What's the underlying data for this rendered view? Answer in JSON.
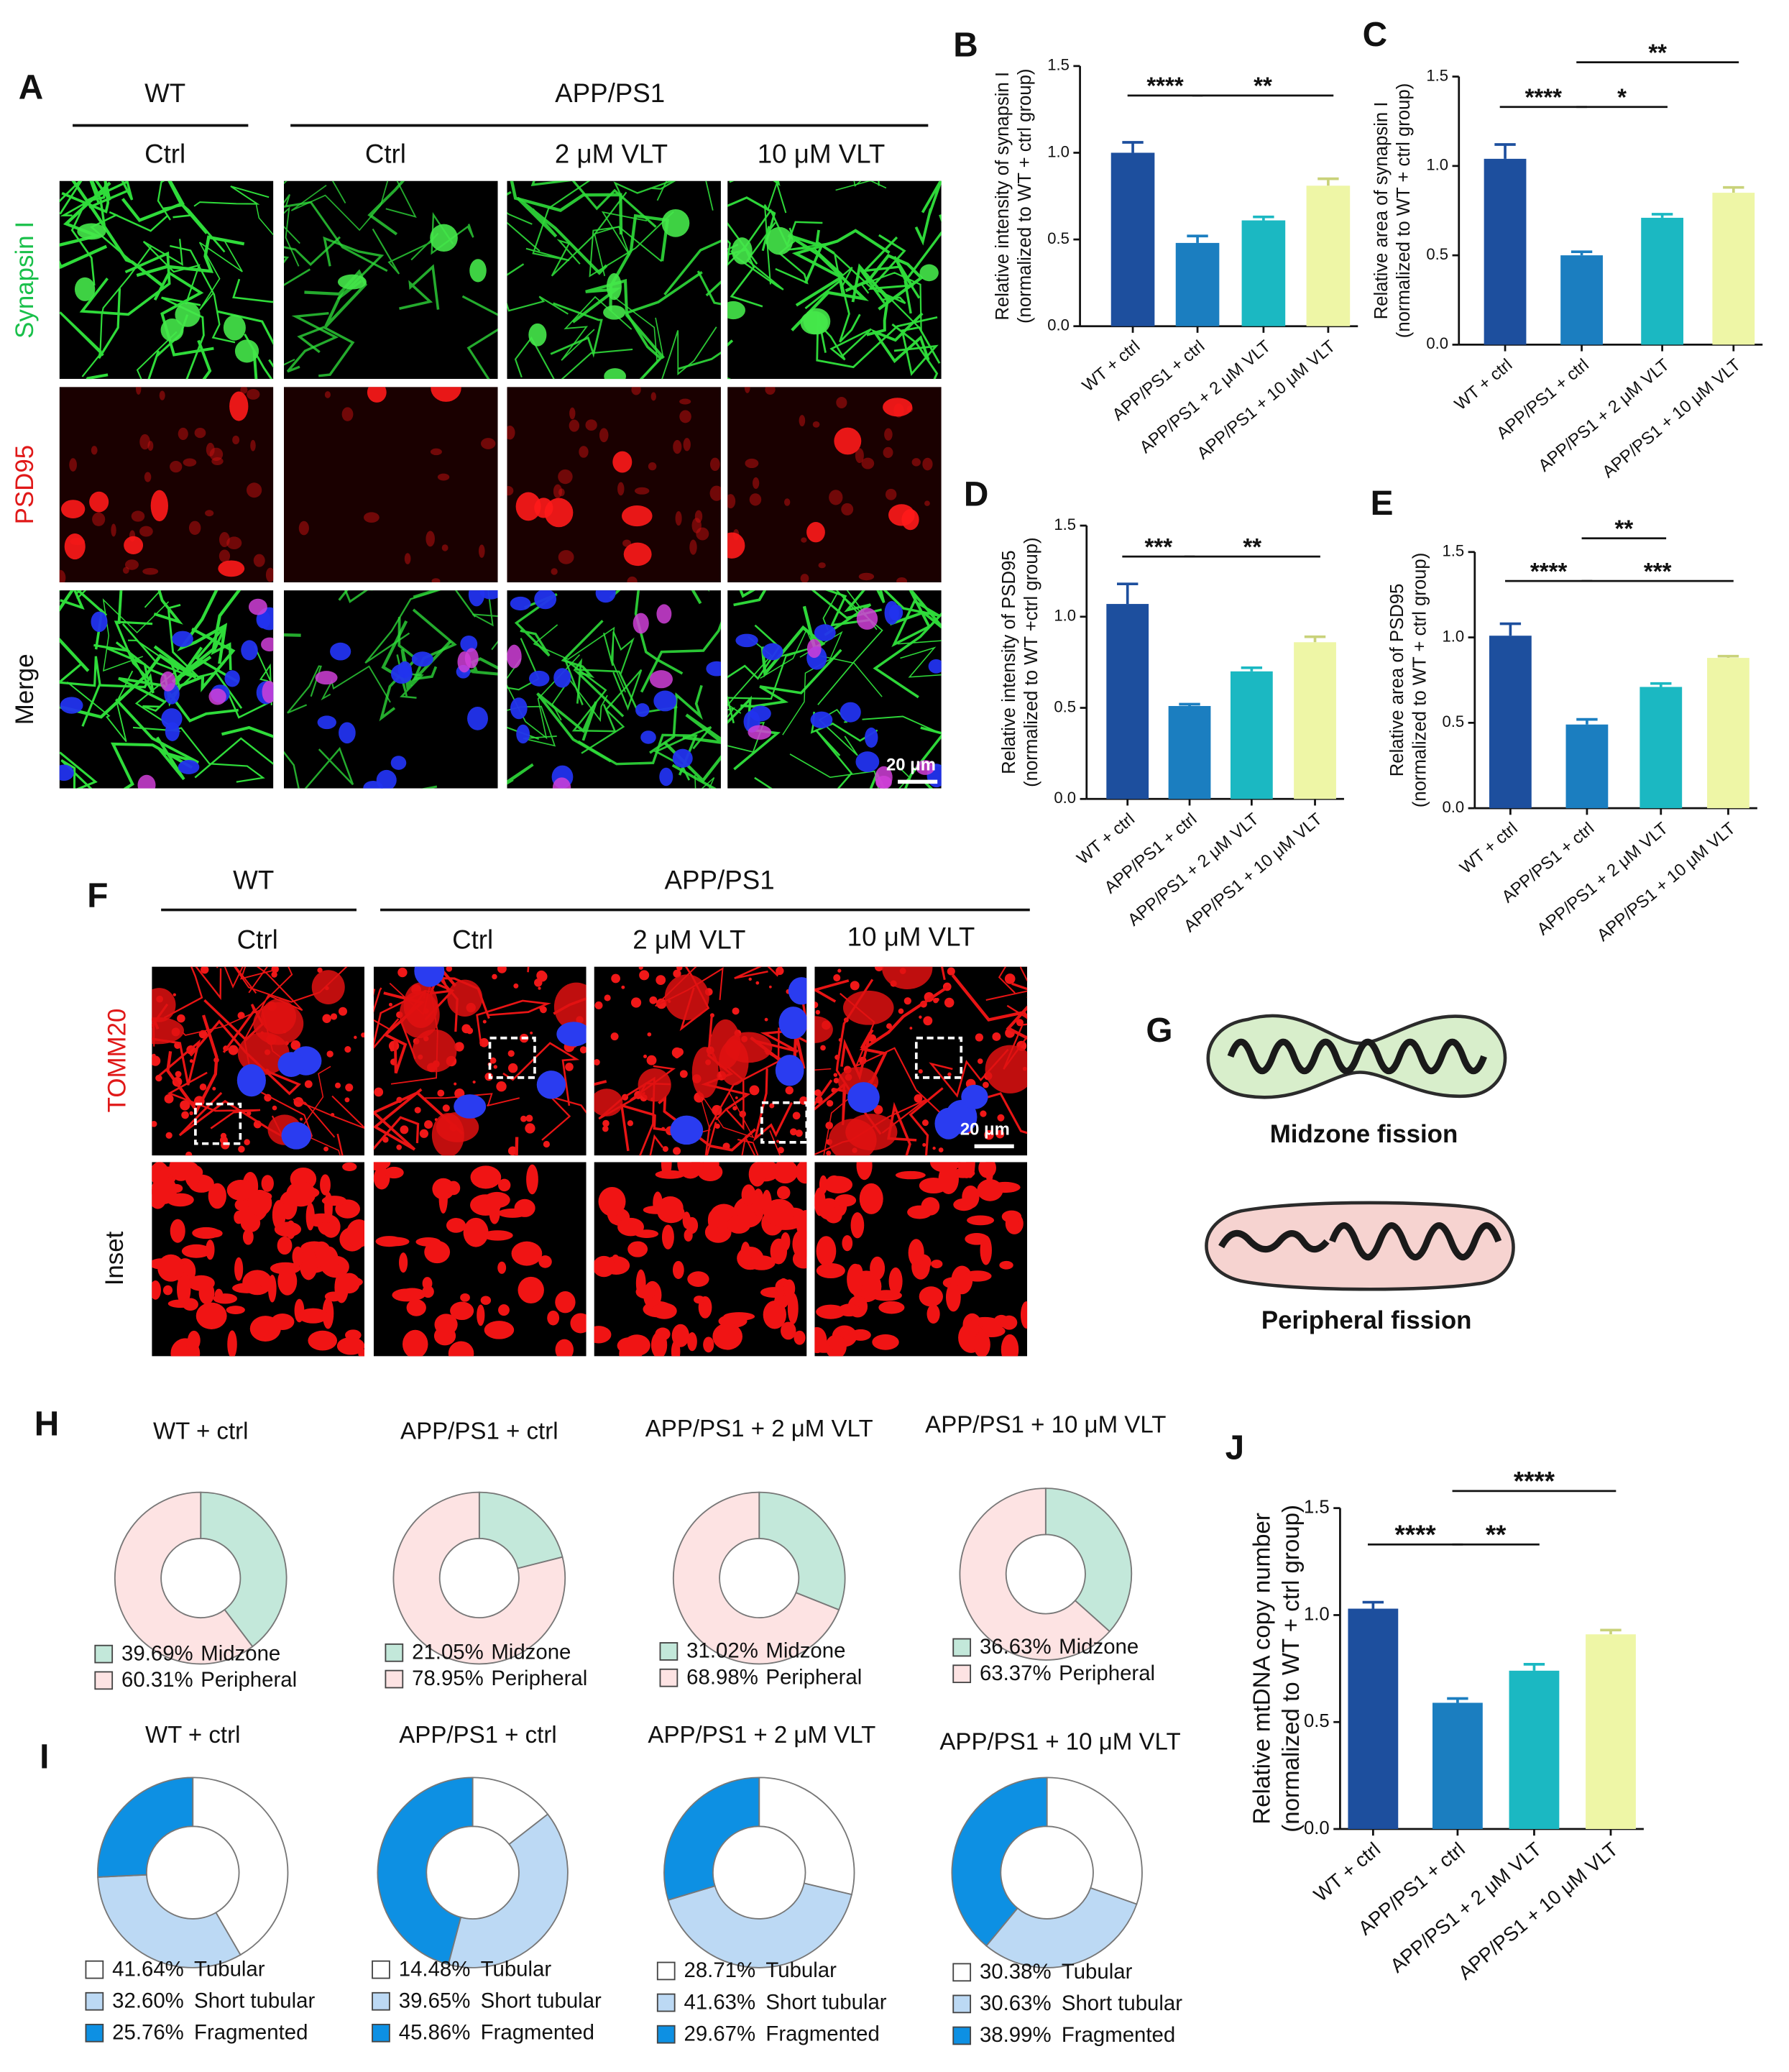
{
  "figure": {
    "panel_labels": [
      "A",
      "B",
      "C",
      "D",
      "E",
      "F",
      "G",
      "H",
      "I",
      "J"
    ],
    "A": {
      "group_labels": [
        "WT",
        "APP/PS1"
      ],
      "column_labels": [
        "Ctrl",
        "Ctrl",
        "2 μM VLT",
        "10 μM VLT"
      ],
      "row_labels": [
        "Synapsin I",
        "PSD95",
        "Merge"
      ],
      "scale_bar": "20 μm"
    },
    "F": {
      "group_labels": [
        "WT",
        "APP/PS1"
      ],
      "column_labels": [
        "Ctrl",
        "Ctrl",
        "2 μM VLT",
        "10 μM VLT"
      ],
      "row_labels": [
        "TOMM20",
        "Inset"
      ],
      "scale_bar": "20 μm"
    },
    "G": {
      "labels": [
        "Midzone fission",
        "Peripheral fission"
      ]
    }
  },
  "chart_data": [
    {
      "type": "bar",
      "ylabel": [
        "Relative intensity of synapsin I",
        "(normalized to WT + ctrl group)"
      ],
      "categories": [
        "WT + ctrl",
        "APP/PS1 + ctrl",
        "APP/PS1 + 2 μM VLT",
        "APP/PS1 + 10 μM VLT"
      ],
      "values": [
        1.0,
        0.48,
        0.61,
        0.81
      ],
      "errors": [
        0.06,
        0.04,
        0.02,
        0.04
      ],
      "colors": [
        "#1d4f9e",
        "#1b7ec0",
        "#1bb8c2",
        "#eef6a6"
      ],
      "ylim": [
        0,
        1.5
      ],
      "yticks": [
        {
          "value": 0,
          "label": "0.0"
        },
        {
          "value": 0.5,
          "label": "0.5"
        },
        {
          "value": 1,
          "label": "1.0"
        },
        {
          "value": 1.5,
          "label": "1.5"
        }
      ],
      "annotations": [
        {
          "text": "****",
          "between": [
            0,
            1
          ]
        },
        {
          "text": "**",
          "between": [
            1,
            3
          ]
        }
      ]
    },
    {
      "type": "bar",
      "ylabel": [
        "Relative area of synapsin I",
        "(normalized to WT + ctrl group)"
      ],
      "categories": [
        "WT + ctrl",
        "APP/PS1 + ctrl",
        "APP/PS1 + 2 μM VLT",
        "APP/PS1 + 10 μM VLT"
      ],
      "values": [
        1.04,
        0.5,
        0.71,
        0.85
      ],
      "errors": [
        0.08,
        0.02,
        0.02,
        0.03
      ],
      "colors": [
        "#1d4f9e",
        "#1b7ec0",
        "#1bb8c2",
        "#eef6a6"
      ],
      "ylim": [
        0,
        1.5
      ],
      "yticks": [
        {
          "value": 0,
          "label": "0.0"
        },
        {
          "value": 0.5,
          "label": "0.5"
        },
        {
          "value": 1,
          "label": "1.0"
        },
        {
          "value": 1.5,
          "label": "1.5"
        }
      ],
      "annotations": [
        {
          "text": "****",
          "between": [
            0,
            1
          ]
        },
        {
          "text": "*",
          "between": [
            1,
            2
          ]
        },
        {
          "text": "**",
          "between": [
            1,
            3
          ]
        }
      ]
    },
    {
      "type": "bar",
      "ylabel": [
        "Relative intensity of PSD95",
        "(normalized to WT +ctrl group)"
      ],
      "categories": [
        "WT + ctrl",
        "APP/PS1 + ctrl",
        "APP/PS1 + 2 μM VLT",
        "APP/PS1 + 10 μM VLT"
      ],
      "values": [
        1.07,
        0.51,
        0.7,
        0.86
      ],
      "errors": [
        0.11,
        0.01,
        0.02,
        0.03
      ],
      "colors": [
        "#1d4f9e",
        "#1b7ec0",
        "#1bb8c2",
        "#eef6a6"
      ],
      "ylim": [
        0,
        1.5
      ],
      "yticks": [
        {
          "value": 0,
          "label": "0.0"
        },
        {
          "value": 0.5,
          "label": "0.5"
        },
        {
          "value": 1,
          "label": "1.0"
        },
        {
          "value": 1.5,
          "label": "1.5"
        }
      ],
      "annotations": [
        {
          "text": "***",
          "between": [
            0,
            1
          ]
        },
        {
          "text": "**",
          "between": [
            1,
            3
          ]
        }
      ]
    },
    {
      "type": "bar",
      "ylabel": [
        "Relative area of PSD95",
        "(normalized to WT + ctrl group)"
      ],
      "categories": [
        "WT + ctrl",
        "APP/PS1 + ctrl",
        "APP/PS1 + 2 μM VLT",
        "APP/PS1 + 10 μM VLT"
      ],
      "values": [
        1.01,
        0.49,
        0.71,
        0.88
      ],
      "errors": [
        0.07,
        0.03,
        0.02,
        0.01
      ],
      "colors": [
        "#1d4f9e",
        "#1b7ec0",
        "#1bb8c2",
        "#eef6a6"
      ],
      "ylim": [
        0,
        1.5
      ],
      "yticks": [
        {
          "value": 0,
          "label": "0.0"
        },
        {
          "value": 0.5,
          "label": "0.5"
        },
        {
          "value": 1,
          "label": "1.0"
        },
        {
          "value": 1.5,
          "label": "1.5"
        }
      ],
      "annotations": [
        {
          "text": "****",
          "between": [
            0,
            1
          ]
        },
        {
          "text": "***",
          "between": [
            1,
            3
          ]
        },
        {
          "text": "**",
          "between": [
            1,
            2
          ]
        }
      ]
    },
    {
      "type": "donut",
      "title": "WT + ctrl",
      "categories": [
        "Midzone",
        "Peripheral"
      ],
      "values": [
        39.69,
        60.31
      ],
      "value_labels": [
        "39.69%",
        "60.31%"
      ],
      "colors": [
        "#c3e8da",
        "#fde3e3"
      ]
    },
    {
      "type": "donut",
      "title": "APP/PS1 + ctrl",
      "categories": [
        "Midzone",
        "Peripheral"
      ],
      "values": [
        21.05,
        78.95
      ],
      "value_labels": [
        "21.05%",
        "78.95%"
      ],
      "colors": [
        "#c3e8da",
        "#fde3e3"
      ]
    },
    {
      "type": "donut",
      "title": "APP/PS1 + 2 μM VLT",
      "categories": [
        "Midzone",
        "Peripheral"
      ],
      "values": [
        31.02,
        68.98
      ],
      "value_labels": [
        "31.02%",
        "68.98%"
      ],
      "colors": [
        "#c3e8da",
        "#fde3e3"
      ]
    },
    {
      "type": "donut",
      "title": "APP/PS1 + 10 μM VLT",
      "categories": [
        "Midzone",
        "Peripheral"
      ],
      "values": [
        36.63,
        63.37
      ],
      "value_labels": [
        "36.63%",
        "63.37%"
      ],
      "colors": [
        "#c3e8da",
        "#fde3e3"
      ]
    },
    {
      "type": "donut",
      "title": "WT + ctrl",
      "categories": [
        "Tubular",
        "Short tubular",
        "Fragmented"
      ],
      "values": [
        41.64,
        32.6,
        25.76
      ],
      "value_labels": [
        "41.64%",
        "32.60%",
        "25.76%"
      ],
      "colors": [
        "#ffffff",
        "#bcd9f4",
        "#0d90e3"
      ]
    },
    {
      "type": "donut",
      "title": "APP/PS1 + ctrl",
      "categories": [
        "Tubular",
        "Short tubular",
        "Fragmented"
      ],
      "values": [
        14.48,
        39.65,
        45.86
      ],
      "value_labels": [
        "14.48%",
        "39.65%",
        "45.86%"
      ],
      "colors": [
        "#ffffff",
        "#bcd9f4",
        "#0d90e3"
      ]
    },
    {
      "type": "donut",
      "title": "APP/PS1 + 2 μM VLT",
      "categories": [
        "Tubular",
        "Short tubular",
        "Fragmented"
      ],
      "values": [
        28.71,
        41.63,
        29.67
      ],
      "value_labels": [
        "28.71%",
        "41.63%",
        "29.67%"
      ],
      "colors": [
        "#ffffff",
        "#bcd9f4",
        "#0d90e3"
      ]
    },
    {
      "type": "donut",
      "title": "APP/PS1 + 10 μM VLT",
      "categories": [
        "Tubular",
        "Short tubular",
        "Fragmented"
      ],
      "values": [
        30.38,
        30.63,
        38.99
      ],
      "value_labels": [
        "30.38%",
        "30.63%",
        "38.99%"
      ],
      "colors": [
        "#ffffff",
        "#bcd9f4",
        "#0d90e3"
      ]
    },
    {
      "type": "bar",
      "ylabel": [
        "Relative mtDNA copy number",
        "(normalized to WT + ctrl group)"
      ],
      "categories": [
        "WT + ctrl",
        "APP/PS1 + ctrl",
        "APP/PS1 + 2 μM VLT",
        "APP/PS1 + 10 μM VLT"
      ],
      "values": [
        1.03,
        0.59,
        0.74,
        0.91
      ],
      "errors": [
        0.03,
        0.02,
        0.03,
        0.02
      ],
      "colors": [
        "#1d4f9e",
        "#1b7ec0",
        "#1bb8c2",
        "#eef6a6"
      ],
      "ylim": [
        0,
        1.5
      ],
      "yticks": [
        {
          "value": 0,
          "label": "0.0"
        },
        {
          "value": 0.5,
          "label": "0.5"
        },
        {
          "value": 1,
          "label": "1.0"
        },
        {
          "value": 1.5,
          "label": "1.5"
        }
      ],
      "annotations": [
        {
          "text": "****",
          "between": [
            0,
            1
          ]
        },
        {
          "text": "**",
          "between": [
            1,
            2
          ]
        },
        {
          "text": "****",
          "between": [
            1,
            3
          ]
        }
      ]
    }
  ]
}
